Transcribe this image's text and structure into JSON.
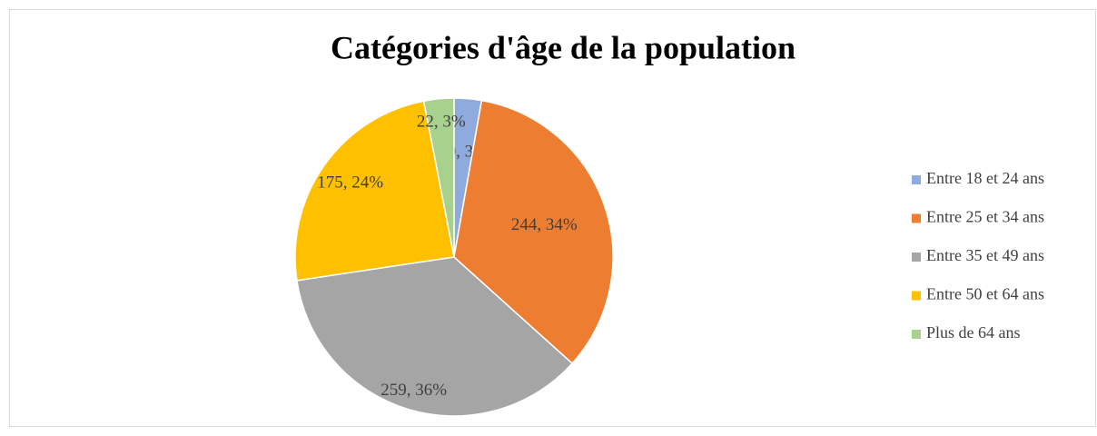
{
  "chart_data": {
    "type": "pie",
    "title": "Catégories d'âge de la population",
    "categories": [
      "Entre 18 et 24 ans",
      "Entre 25 et 34 ans",
      "Entre 35 et 49 ans",
      "Entre 50 et 64 ans",
      "Plus de 64 ans"
    ],
    "values": [
      20,
      244,
      259,
      175,
      22
    ],
    "value_labels": [
      "20, 3%",
      "244, 34%",
      "259, 36%",
      "175, 24%",
      "22, 3%"
    ],
    "colors": [
      "#8faadc",
      "#ed7d31",
      "#a5a5a5",
      "#ffc000",
      "#a9d18e"
    ],
    "legend": "right"
  }
}
